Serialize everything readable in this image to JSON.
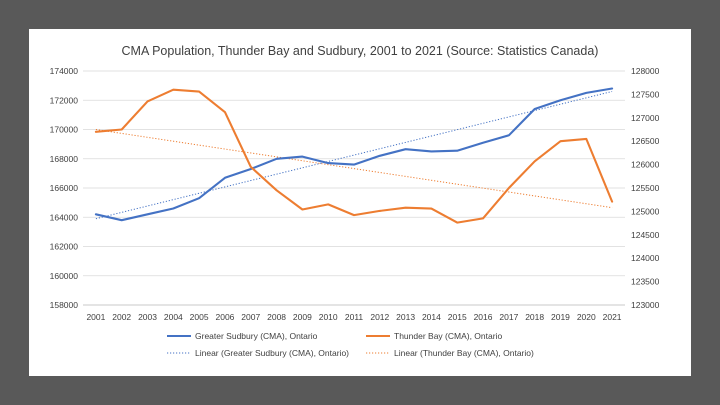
{
  "chart_data": {
    "type": "line",
    "title": "CMA Population, Thunder Bay and Sudbury, 2001 to 2021 (Source: Statistics Canada)",
    "x": [
      "2001",
      "2002",
      "2003",
      "2004",
      "2005",
      "2006",
      "2007",
      "2008",
      "2009",
      "2010",
      "2011",
      "2012",
      "2013",
      "2014",
      "2015",
      "2016",
      "2017",
      "2018",
      "2019",
      "2020",
      "2021"
    ],
    "y_left": {
      "min": 158000,
      "max": 174000,
      "step": 2000,
      "ticks": [
        "158000",
        "160000",
        "162000",
        "164000",
        "166000",
        "168000",
        "170000",
        "172000",
        "174000"
      ]
    },
    "y_right": {
      "min": 123000,
      "max": 128000,
      "step": 500,
      "ticks": [
        "123000",
        "123500",
        "124000",
        "124500",
        "125000",
        "125500",
        "126000",
        "126500",
        "127000",
        "127500",
        "128000"
      ]
    },
    "series": [
      {
        "name": "Greater Sudbury (CMA), Ontario",
        "axis": "left",
        "color": "#4472C4",
        "values": [
          164200,
          163800,
          164200,
          164600,
          165300,
          166700,
          167300,
          168000,
          168150,
          167700,
          167600,
          168200,
          168650,
          168500,
          168550,
          169100,
          169600,
          171400,
          172000,
          172500,
          172800
        ]
      },
      {
        "name": "Thunder Bay (CMA), Ontario",
        "axis": "right",
        "color": "#ED7D31",
        "values": [
          126700,
          126750,
          127350,
          127600,
          127560,
          127120,
          125950,
          125450,
          125040,
          125150,
          124920,
          125010,
          125080,
          125060,
          124760,
          124850,
          125500,
          126070,
          126500,
          126550,
          125210
        ]
      }
    ],
    "trendlines": [
      {
        "name": "Linear (Greater Sudbury (CMA), Ontario)",
        "axis": "left",
        "color": "#4472C4",
        "start": 163900,
        "end": 172600
      },
      {
        "name": "Linear (Thunder Bay (CMA), Ontario)",
        "axis": "right",
        "color": "#ED7D31",
        "start": 126750,
        "end": 125080
      }
    ],
    "grid": true,
    "legend_position": "bottom"
  }
}
